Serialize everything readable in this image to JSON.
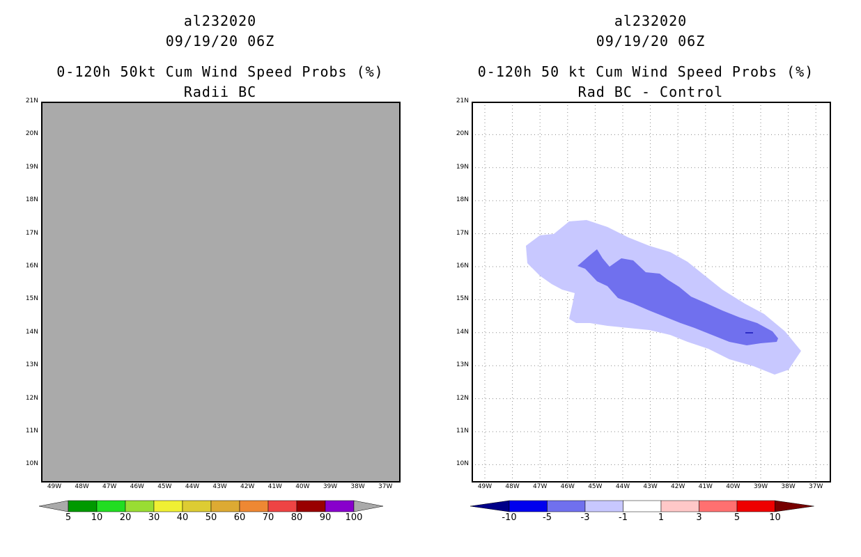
{
  "left_panel": {
    "storm_id": "al232020",
    "datetime": "09/19/20 06Z",
    "title": "0-120h 50kt Cum Wind Speed Probs (%)",
    "subtitle": "Radii BC",
    "field_color": "#aaaaaa",
    "lat_labels": [
      "21N",
      "20N",
      "19N",
      "18N",
      "17N",
      "16N",
      "15N",
      "14N",
      "13N",
      "12N",
      "11N",
      "10N"
    ],
    "lon_labels": [
      "49W",
      "48W",
      "47W",
      "46W",
      "45W",
      "44W",
      "43W",
      "42W",
      "41W",
      "40W",
      "39W",
      "38W",
      "37W"
    ],
    "colorbar": {
      "colors": [
        "#009900",
        "#22dd22",
        "#99dd33",
        "#f0f033",
        "#ddcc33",
        "#ddaa33",
        "#ee8833",
        "#ee4444",
        "#990000",
        "#8800cc"
      ],
      "end_low": "#aaaaaa",
      "end_high": "#aaaaaa",
      "labels": [
        "5",
        "10",
        "20",
        "30",
        "40",
        "50",
        "60",
        "70",
        "80",
        "90",
        "100"
      ]
    }
  },
  "right_panel": {
    "storm_id": "al232020",
    "datetime": "09/19/20 06Z",
    "title": "0-120h 50 kt Cum Wind Speed Probs (%)",
    "subtitle": "Rad BC - Control",
    "lat_labels": [
      "21N",
      "20N",
      "19N",
      "18N",
      "17N",
      "16N",
      "15N",
      "14N",
      "13N",
      "12N",
      "11N",
      "10N"
    ],
    "lon_labels": [
      "49W",
      "48W",
      "47W",
      "46W",
      "45W",
      "44W",
      "43W",
      "42W",
      "41W",
      "40W",
      "39W",
      "38W",
      "37W"
    ],
    "contours": [
      {
        "level": "-3 to -1",
        "color": "#c8c8ff"
      },
      {
        "level": "-5 to -3",
        "color": "#7070ee"
      }
    ],
    "colorbar": {
      "colors": [
        "#0000ee",
        "#7070ee",
        "#c8c8ff",
        "#ffffff",
        "#ffc8c8",
        "#ff7070",
        "#ee0000"
      ],
      "end_low": "#000088",
      "end_high": "#770000",
      "labels": [
        "-10",
        "-5",
        "-3",
        "-1",
        "1",
        "3",
        "5",
        "10"
      ]
    }
  }
}
